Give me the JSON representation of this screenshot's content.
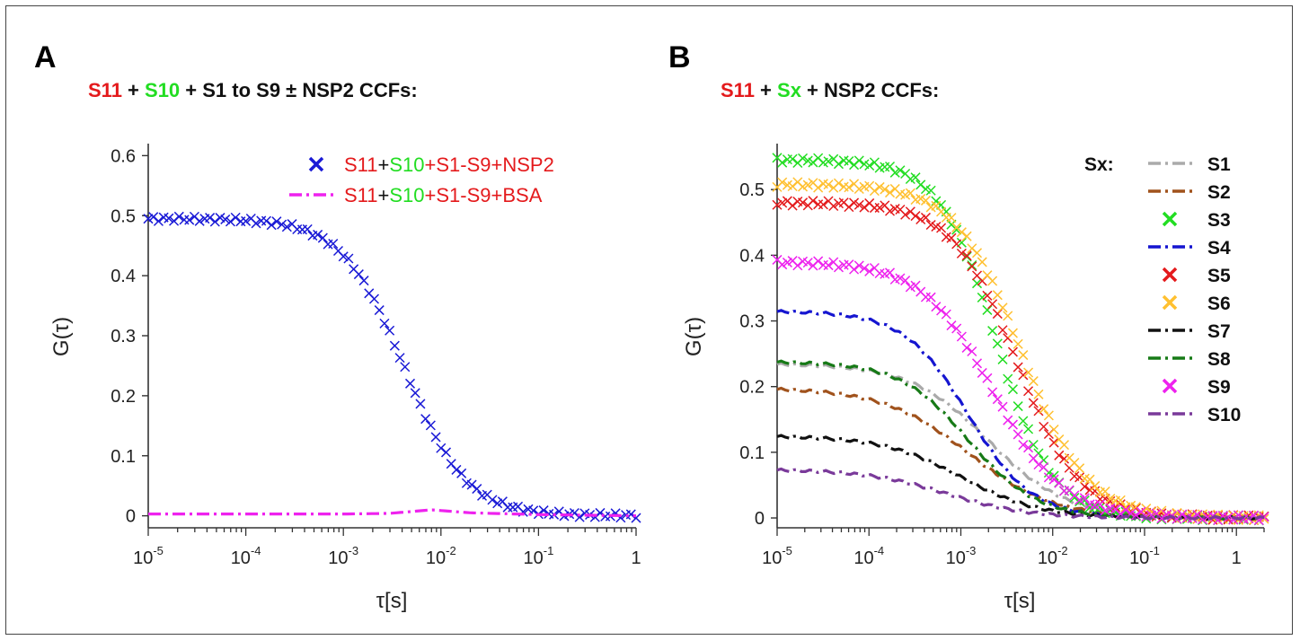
{
  "colors": {
    "red": "#e41a1c",
    "green": "#22dd22",
    "black": "#111111",
    "axis": "#333333"
  },
  "panelA": {
    "letter": "A",
    "title": [
      {
        "text": "S11",
        "color": "#e41a1c"
      },
      {
        "text": " + ",
        "color": "#111111"
      },
      {
        "text": "S10",
        "color": "#22dd22"
      },
      {
        "text": " + S1 to S9 ± NSP2 CCFs:",
        "color": "#111111"
      }
    ],
    "ylabel": "G(τ)",
    "xlabel": "τ[s]",
    "legend": [
      {
        "marker": "cross",
        "color": "#1a1ad6",
        "parts": [
          {
            "t": "S11",
            "c": "#e41a1c"
          },
          {
            "t": "+",
            "c": "#111111"
          },
          {
            "t": "S10",
            "c": "#22dd22"
          },
          {
            "t": "+S1-S9+NSP2",
            "c": "#e41a1c"
          }
        ]
      },
      {
        "marker": "dashdot",
        "color": "#ee22ee",
        "parts": [
          {
            "t": "S11",
            "c": "#e41a1c"
          },
          {
            "t": "+",
            "c": "#111111"
          },
          {
            "t": "S10",
            "c": "#22dd22"
          },
          {
            "t": "+S1-S9+BSA",
            "c": "#e41a1c"
          }
        ]
      }
    ]
  },
  "panelB": {
    "letter": "B",
    "title": [
      {
        "text": "S11",
        "color": "#e41a1c"
      },
      {
        "text": " + ",
        "color": "#111111"
      },
      {
        "text": "Sx",
        "color": "#22dd22"
      },
      {
        "text": " + NSP2 CCFs:",
        "color": "#111111"
      }
    ],
    "ylabel": "G(τ)",
    "xlabel": "τ[s]",
    "legend_title": "Sx:"
  },
  "chart_data": [
    {
      "type": "scatter",
      "panel": "A",
      "xscale": "log",
      "xlim": [
        1e-05,
        1
      ],
      "ylim": [
        -0.02,
        0.62
      ],
      "xticks": [
        {
          "v": 1e-05,
          "base": "10",
          "exp": "-5"
        },
        {
          "v": 0.0001,
          "base": "10",
          "exp": "-4"
        },
        {
          "v": 0.001,
          "base": "10",
          "exp": "-3"
        },
        {
          "v": 0.01,
          "base": "10",
          "exp": "-2"
        },
        {
          "v": 0.1,
          "base": "10",
          "exp": "-1"
        },
        {
          "v": 1,
          "base": "1",
          "exp": ""
        }
      ],
      "yticks": [
        "0",
        "0.1",
        "0.2",
        "0.3",
        "0.4",
        "0.5",
        "0.6"
      ],
      "xlabel": "τ[s]",
      "ylabel": "G(τ)",
      "series": [
        {
          "name": "S11+S10+S1-S9+NSP2",
          "style": "cross",
          "color": "#1a1ad6",
          "model": {
            "A": 0.495,
            "tau": 0.0042,
            "s": 3.5
          },
          "points": [
            [
              1e-05,
              0.495
            ],
            [
              3e-05,
              0.493
            ],
            [
              0.0001,
              0.485
            ],
            [
              0.0003,
              0.455
            ],
            [
              0.001,
              0.37
            ],
            [
              0.002,
              0.3
            ],
            [
              0.004,
              0.22
            ],
            [
              0.01,
              0.12
            ],
            [
              0.02,
              0.05
            ],
            [
              0.05,
              0.012
            ],
            [
              0.1,
              0.005
            ],
            [
              1,
              0.0
            ]
          ]
        },
        {
          "name": "S11+S10+S1-S9+BSA",
          "style": "dashdot",
          "color": "#ee22ee",
          "points": [
            [
              1e-05,
              0.003
            ],
            [
              0.0001,
              0.003
            ],
            [
              0.001,
              0.003
            ],
            [
              0.003,
              0.004
            ],
            [
              0.008,
              0.01
            ],
            [
              0.02,
              0.005
            ],
            [
              0.1,
              0.002
            ],
            [
              1,
              0.0
            ]
          ]
        }
      ]
    },
    {
      "type": "scatter",
      "panel": "B",
      "xscale": "log",
      "xlim": [
        1e-05,
        2
      ],
      "ylim": [
        -0.015,
        0.57
      ],
      "xticks": [
        {
          "v": 1e-05,
          "base": "10",
          "exp": "-5"
        },
        {
          "v": 0.0001,
          "base": "10",
          "exp": "-4"
        },
        {
          "v": 0.001,
          "base": "10",
          "exp": "-3"
        },
        {
          "v": 0.01,
          "base": "10",
          "exp": "-2"
        },
        {
          "v": 0.1,
          "base": "10",
          "exp": "-1"
        },
        {
          "v": 1,
          "base": "1",
          "exp": ""
        }
      ],
      "yticks": [
        "0",
        "0.1",
        "0.2",
        "0.3",
        "0.4",
        "0.5"
      ],
      "xlabel": "τ[s]",
      "ylabel": "G(τ)",
      "legend_title": "Sx:",
      "series": [
        {
          "name": "S1",
          "style": "dashdot",
          "color": "#aaaaaa",
          "model": {
            "A": 0.235,
            "tau": 0.002,
            "s": 2.6
          }
        },
        {
          "name": "S2",
          "style": "dashdot",
          "color": "#a0521c",
          "model": {
            "A": 0.198,
            "tau": 0.0012,
            "s": 2.4
          }
        },
        {
          "name": "S3",
          "style": "cross",
          "color": "#22dd22",
          "model": {
            "A": 0.545,
            "tau": 0.0024,
            "s": 3.6
          }
        },
        {
          "name": "S4",
          "style": "dashdot",
          "color": "#1515d0",
          "model": {
            "A": 0.315,
            "tau": 0.0012,
            "s": 3.2
          }
        },
        {
          "name": "S5",
          "style": "cross",
          "color": "#e41a1c",
          "model": {
            "A": 0.48,
            "tau": 0.004,
            "s": 3.2
          }
        },
        {
          "name": "S6",
          "style": "cross",
          "color": "#ffc030",
          "model": {
            "A": 0.508,
            "tau": 0.0045,
            "s": 3.1
          }
        },
        {
          "name": "S7",
          "style": "dashdot",
          "color": "#111111",
          "model": {
            "A": 0.125,
            "tau": 0.001,
            "s": 2.6
          }
        },
        {
          "name": "S8",
          "style": "dashdot",
          "color": "#177a17",
          "model": {
            "A": 0.238,
            "tau": 0.0012,
            "s": 3.0
          }
        },
        {
          "name": "S9",
          "style": "cross",
          "color": "#ee22ee",
          "model": {
            "A": 0.39,
            "tau": 0.0022,
            "s": 2.9
          }
        },
        {
          "name": "S10",
          "style": "dashdot",
          "color": "#7a3a9a",
          "model": {
            "A": 0.074,
            "tau": 0.0007,
            "s": 2.5
          }
        }
      ]
    }
  ]
}
